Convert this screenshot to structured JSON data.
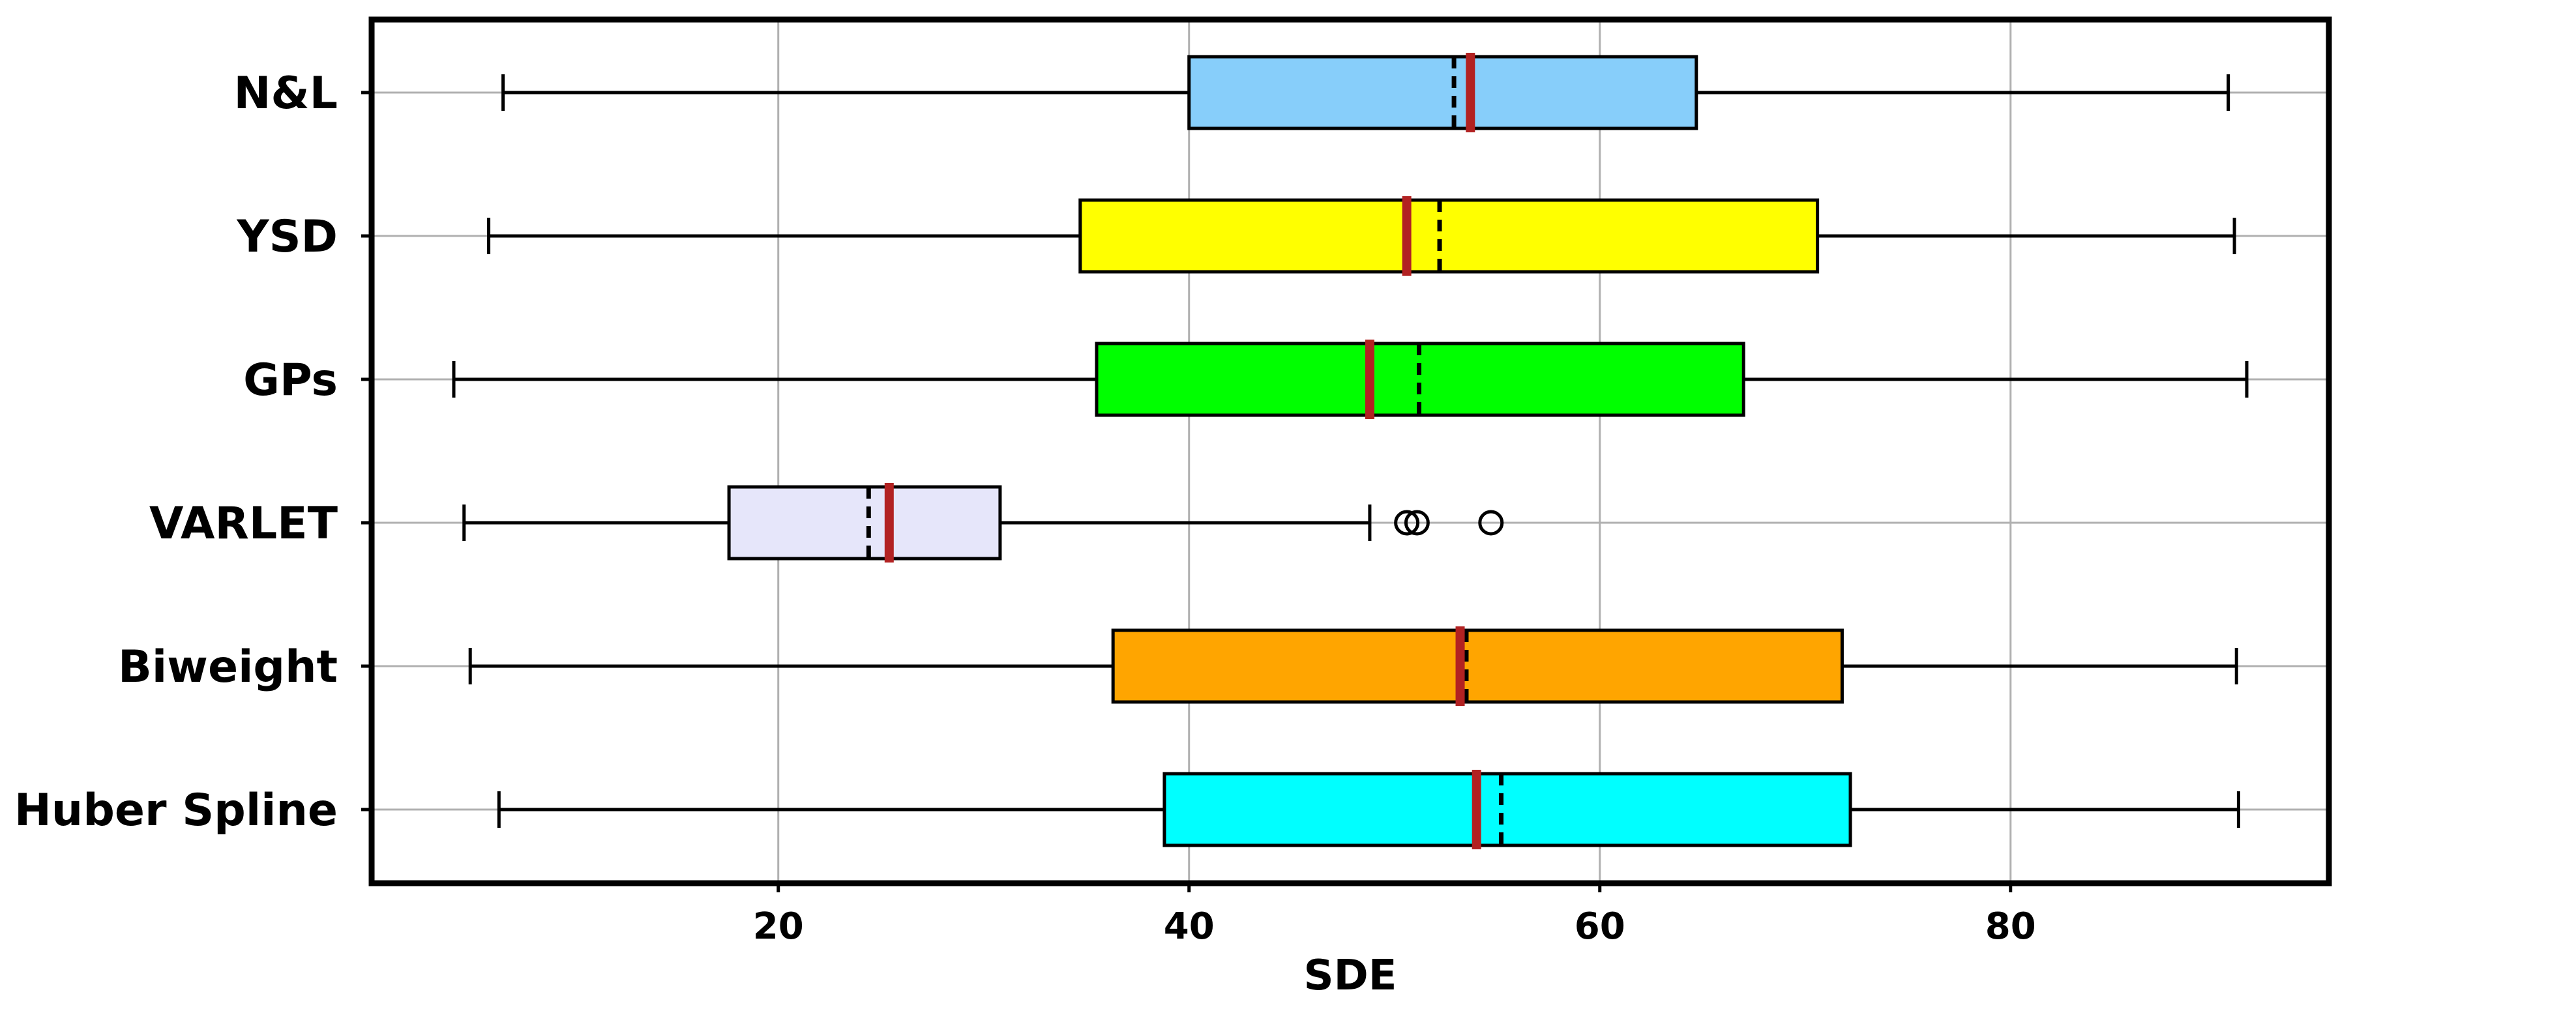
{
  "chart_data": {
    "type": "boxplot",
    "orientation": "horizontal",
    "title": "",
    "xlabel": "SDE",
    "ylabel": "",
    "xlim": [
      0.2,
      95.5
    ],
    "xticks": [
      20,
      40,
      60,
      80
    ],
    "grid": true,
    "legend": "none",
    "median_line_color": "#b22222",
    "mean_line_style": "dashed black",
    "categories": [
      "N&L",
      "YSD",
      "GPs",
      "VARLET",
      "Biweight",
      "Huber Spline"
    ],
    "series": [
      {
        "category": "N&L",
        "whislo": 6.6,
        "q1": 40.0,
        "median": 53.7,
        "mean": 52.9,
        "q3": 64.7,
        "whishi": 90.6,
        "fliers": [],
        "color": "#87cefa"
      },
      {
        "category": "YSD",
        "whislo": 5.9,
        "q1": 34.7,
        "median": 50.6,
        "mean": 52.2,
        "q3": 70.6,
        "whishi": 90.9,
        "fliers": [],
        "color": "#ffff00"
      },
      {
        "category": "GPs",
        "whislo": 4.2,
        "q1": 35.5,
        "median": 48.8,
        "mean": 51.2,
        "q3": 67.0,
        "whishi": 91.5,
        "fliers": [],
        "color": "#00ff00"
      },
      {
        "category": "VARLET",
        "whislo": 4.7,
        "q1": 17.6,
        "median": 25.4,
        "mean": 24.4,
        "q3": 30.8,
        "whishi": 48.8,
        "fliers": [
          50.6,
          51.1,
          54.7
        ],
        "color": "#e6e6fa"
      },
      {
        "category": "Biweight",
        "whislo": 5.0,
        "q1": 36.3,
        "median": 53.2,
        "mean": 53.5,
        "q3": 71.8,
        "whishi": 91.0,
        "fliers": [],
        "color": "#ffa500"
      },
      {
        "category": "Huber Spline",
        "whislo": 6.4,
        "q1": 38.8,
        "median": 54.0,
        "mean": 55.2,
        "q3": 72.2,
        "whishi": 91.1,
        "fliers": [],
        "color": "#00ffff"
      }
    ]
  }
}
